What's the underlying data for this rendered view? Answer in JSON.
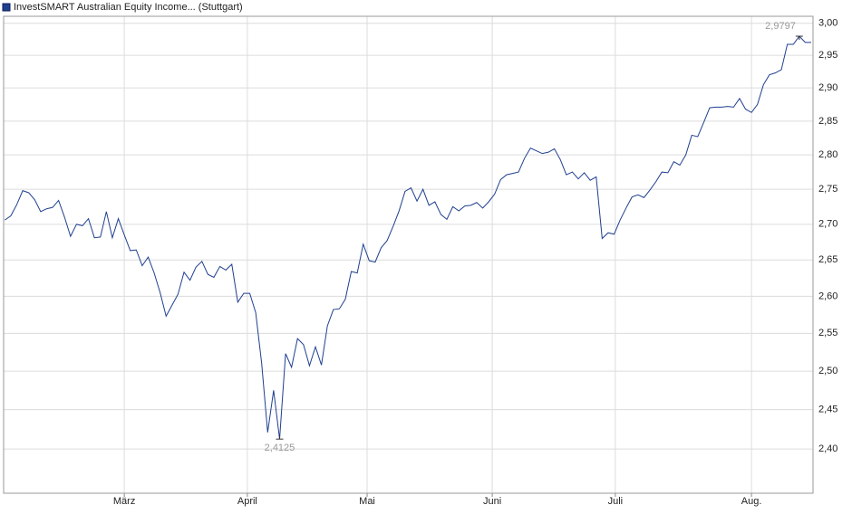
{
  "chart_data": {
    "type": "line",
    "series": [
      {
        "name": "InvestSMART Australian Equity Income... (Stuttgart)",
        "color": "#1f3f8f",
        "values": [
          2.706,
          2.712,
          2.728,
          2.748,
          2.745,
          2.735,
          2.718,
          2.722,
          2.724,
          2.734,
          2.71,
          2.683,
          2.7,
          2.698,
          2.708,
          2.681,
          2.682,
          2.718,
          2.681,
          2.708,
          2.685,
          2.663,
          2.664,
          2.642,
          2.654,
          2.632,
          2.605,
          2.573,
          2.588,
          2.603,
          2.633,
          2.622,
          2.64,
          2.648,
          2.63,
          2.626,
          2.641,
          2.636,
          2.644,
          2.592,
          2.604,
          2.604,
          2.578,
          2.51,
          2.421,
          2.475,
          2.4125,
          2.523,
          2.505,
          2.543,
          2.535,
          2.507,
          2.532,
          2.508,
          2.56,
          2.582,
          2.583,
          2.596,
          2.634,
          2.632,
          2.672,
          2.649,
          2.647,
          2.667,
          2.677,
          2.697,
          2.719,
          2.747,
          2.752,
          2.733,
          2.75,
          2.727,
          2.732,
          2.714,
          2.707,
          2.725,
          2.719,
          2.726,
          2.727,
          2.731,
          2.723,
          2.732,
          2.743,
          2.764,
          2.771,
          2.773,
          2.775,
          2.795,
          2.81,
          2.806,
          2.802,
          2.804,
          2.809,
          2.793,
          2.771,
          2.775,
          2.765,
          2.774,
          2.763,
          2.768,
          2.68,
          2.688,
          2.686,
          2.706,
          2.723,
          2.739,
          2.742,
          2.738,
          2.749,
          2.761,
          2.775,
          2.774,
          2.79,
          2.785,
          2.8,
          2.829,
          2.827,
          2.848,
          2.87,
          2.871,
          2.871,
          2.872,
          2.871,
          2.884,
          2.868,
          2.863,
          2.875,
          2.905,
          2.92,
          2.923,
          2.928,
          2.967,
          2.967,
          2.9797,
          2.97,
          2.97
        ],
        "value_labels": [
          null,
          null,
          null,
          null,
          null,
          null,
          null,
          null,
          null,
          null,
          null,
          null,
          null,
          null,
          null,
          null,
          null,
          null,
          null,
          null,
          null,
          null,
          null,
          null,
          null,
          null,
          null,
          null,
          null,
          null,
          null,
          null,
          null,
          null,
          null,
          null,
          null,
          null,
          null,
          null,
          null,
          null,
          null,
          null,
          null,
          null,
          "2,4125",
          null,
          null,
          null,
          null,
          null,
          null,
          null,
          null,
          null,
          null,
          null,
          null,
          null,
          null,
          null,
          null,
          null,
          null,
          null,
          null,
          null,
          null,
          null,
          null,
          null,
          null,
          null,
          null,
          null,
          null,
          null,
          null,
          null,
          null,
          null,
          null,
          null,
          null,
          null,
          null,
          null,
          null,
          null,
          null,
          null,
          null,
          null,
          null,
          null,
          null,
          null,
          null,
          null,
          null,
          null,
          null,
          null,
          null,
          null,
          null,
          null,
          null,
          null,
          null,
          null,
          null,
          null,
          null,
          null,
          null,
          null,
          null,
          null,
          null,
          null,
          null,
          null,
          null,
          null,
          null,
          null,
          null,
          null,
          null,
          null,
          null,
          "2,9797",
          null,
          null
        ]
      }
    ],
    "x": [
      0,
      1,
      2,
      3,
      4,
      5,
      6,
      7,
      8,
      9,
      10,
      11,
      12,
      13,
      14,
      15,
      16,
      17,
      18,
      19,
      20,
      21,
      22,
      23,
      24,
      25,
      26,
      27,
      28,
      29,
      30,
      31,
      32,
      33,
      34,
      35,
      36,
      37,
      38,
      39,
      40,
      41,
      42,
      43,
      44,
      45,
      46,
      47,
      48,
      49,
      50,
      51,
      52,
      53,
      54,
      55,
      56,
      57,
      58,
      59,
      60,
      61,
      62,
      63,
      64,
      65,
      66,
      67,
      68,
      69,
      70,
      71,
      72,
      73,
      74,
      75,
      76,
      77,
      78,
      79,
      80,
      81,
      82,
      83,
      84,
      85,
      86,
      87,
      88,
      89,
      90,
      91,
      92,
      93,
      94,
      95,
      96,
      97,
      98,
      99,
      100,
      101,
      102,
      103,
      104,
      105,
      106,
      107,
      108,
      109,
      110,
      111,
      112,
      113,
      114,
      115,
      116,
      117,
      118,
      119,
      120,
      121,
      122,
      123,
      124,
      125,
      126,
      127,
      128,
      129,
      130,
      131,
      132,
      133,
      134,
      135
    ],
    "xlim": [
      -0.2,
      135.3
    ],
    "xticks": [
      {
        "value": 20,
        "label": "März"
      },
      {
        "value": 40.6,
        "label": "April"
      },
      {
        "value": 60.65,
        "label": "Mai"
      },
      {
        "value": 81.6,
        "label": "Juni"
      },
      {
        "value": 102.2,
        "label": "Juli"
      },
      {
        "value": 125,
        "label": "Aug."
      }
    ],
    "ylim": [
      2.345,
      3.011
    ],
    "yticks": [
      {
        "value": 2.4,
        "label": "2,40"
      },
      {
        "value": 2.45,
        "label": "2,45"
      },
      {
        "value": 2.5,
        "label": "2,50"
      },
      {
        "value": 2.55,
        "label": "2,55"
      },
      {
        "value": 2.6,
        "label": "2,60"
      },
      {
        "value": 2.65,
        "label": "2,65"
      },
      {
        "value": 2.7,
        "label": "2,70"
      },
      {
        "value": 2.75,
        "label": "2,75"
      },
      {
        "value": 2.8,
        "label": "2,80"
      },
      {
        "value": 2.85,
        "label": "2,85"
      },
      {
        "value": 2.9,
        "label": "2,90"
      },
      {
        "value": 2.95,
        "label": "2,95"
      },
      {
        "value": 3.0,
        "label": "3,00"
      }
    ],
    "log_y": true,
    "grid": true
  }
}
